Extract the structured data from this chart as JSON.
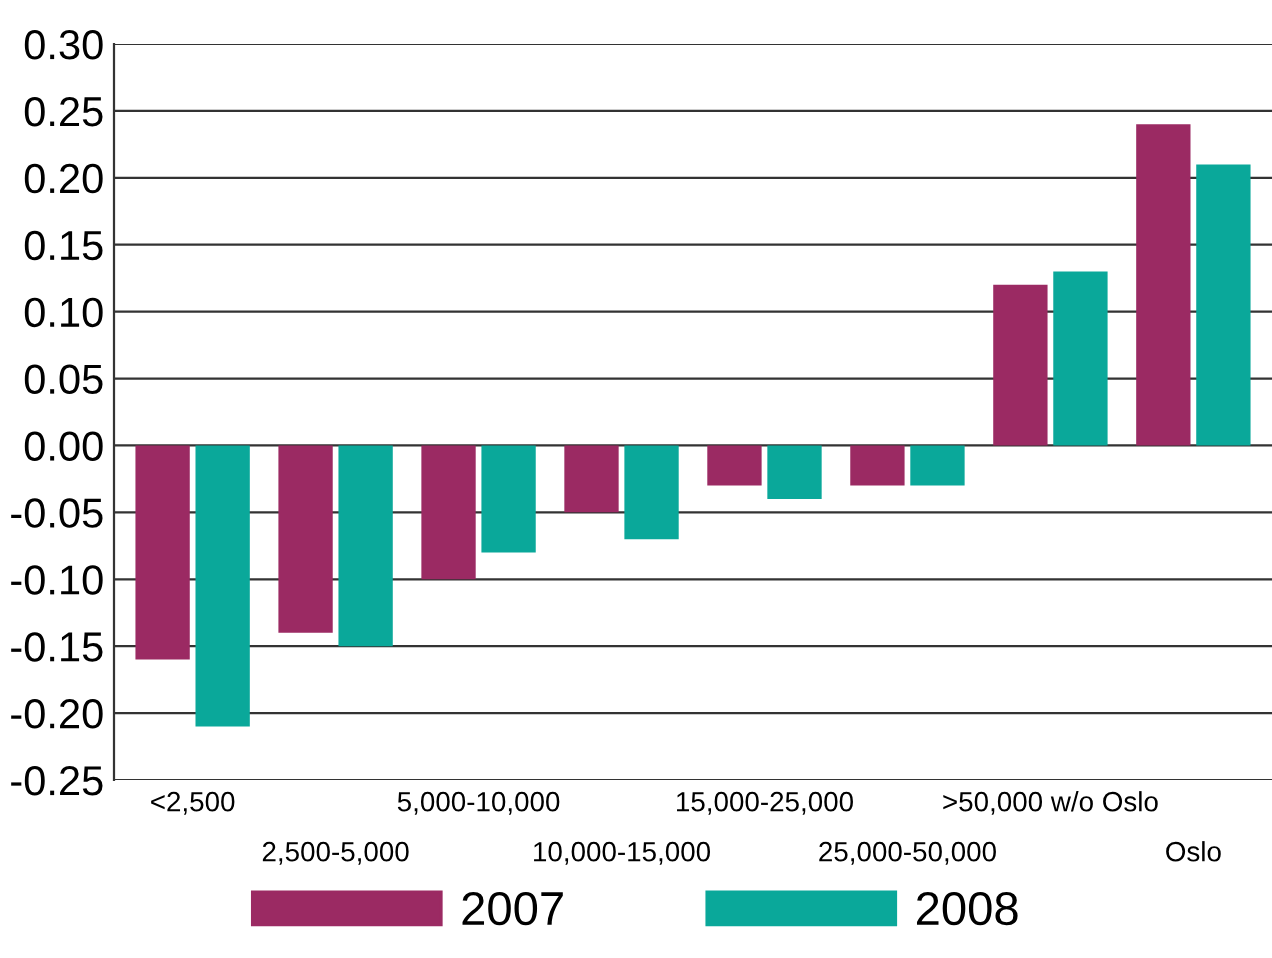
{
  "chart_data": {
    "type": "bar",
    "categories": [
      "<2,500",
      "2,500-5,000",
      "5,000-10,000",
      "10,000-15,000",
      "15,000-25,000",
      "25,000-50,000",
      ">50,000 w/o Oslo",
      "Oslo"
    ],
    "series": [
      {
        "name": "2007",
        "color": "#9b2a63",
        "values": [
          -0.16,
          -0.14,
          -0.1,
          -0.05,
          -0.03,
          -0.03,
          0.12,
          0.24
        ]
      },
      {
        "name": "2008",
        "color": "#0aa89a",
        "values": [
          -0.21,
          -0.15,
          -0.08,
          -0.07,
          -0.04,
          -0.03,
          0.13,
          0.21
        ]
      }
    ],
    "ylim": [
      -0.25,
      0.3
    ],
    "yticks": [
      {
        "value": -0.25,
        "label": "-0.25"
      },
      {
        "value": -0.2,
        "label": "-0.20"
      },
      {
        "value": -0.15,
        "label": "-0.15"
      },
      {
        "value": -0.1,
        "label": "-0.10"
      },
      {
        "value": -0.05,
        "label": "-0.05"
      },
      {
        "value": 0,
        "label": "0.00"
      },
      {
        "value": 0.05,
        "label": "0.05"
      },
      {
        "value": 0.1,
        "label": "0.10"
      },
      {
        "value": 0.15,
        "label": "0.15"
      },
      {
        "value": 0.2,
        "label": "0.20"
      },
      {
        "value": 0.25,
        "label": "0.25"
      },
      {
        "value": 0.3,
        "label": "0.30"
      }
    ],
    "grid": "y",
    "legend": "bottom"
  }
}
